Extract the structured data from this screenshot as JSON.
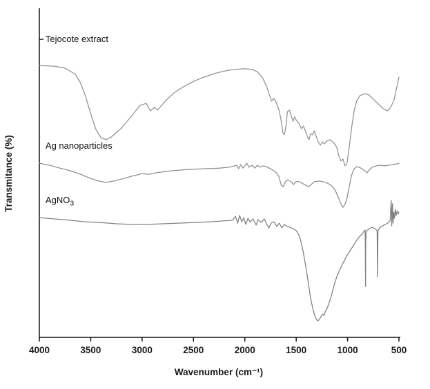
{
  "figure": {
    "background": "#ffffff",
    "axis_color": "#111111",
    "text_color": "#1a1a1a"
  },
  "chart_data": {
    "type": "line",
    "title": "",
    "xlabel": "Wavenumber (cm⁻¹)",
    "ylabel": "Transmitance (%)",
    "x_axis": {
      "min": 500,
      "max": 4000,
      "reversed": true,
      "ticks": [
        4000,
        3500,
        3000,
        2500,
        2000,
        1500,
        1000,
        500
      ]
    },
    "y_axis": {
      "min": 0,
      "max": 100,
      "tick_labels_visible": false,
      "inner_tick_T": [
        92.1
      ]
    },
    "legend": "inline-labels",
    "series": [
      {
        "name": "Tejocote extract",
        "label": "Tejocote extract",
        "label_sub": "",
        "label_wn": 3940,
        "label_T": 92.1,
        "color": "#909090",
        "points": [
          [
            4000,
            84.0
          ],
          [
            3850,
            83.8
          ],
          [
            3750,
            83.2
          ],
          [
            3650,
            81.3
          ],
          [
            3600,
            78.7
          ],
          [
            3550,
            74.5
          ],
          [
            3500,
            69.1
          ],
          [
            3450,
            64.3
          ],
          [
            3400,
            61.7
          ],
          [
            3350,
            61.1
          ],
          [
            3300,
            61.9
          ],
          [
            3200,
            64.7
          ],
          [
            3100,
            68.5
          ],
          [
            3020,
            71.7
          ],
          [
            2960,
            72.3
          ],
          [
            2920,
            70.0
          ],
          [
            2880,
            71.1
          ],
          [
            2850,
            70.2
          ],
          [
            2780,
            72.8
          ],
          [
            2700,
            75.3
          ],
          [
            2600,
            77.4
          ],
          [
            2500,
            79.1
          ],
          [
            2400,
            80.4
          ],
          [
            2300,
            81.5
          ],
          [
            2200,
            82.3
          ],
          [
            2100,
            82.8
          ],
          [
            2000,
            83.0
          ],
          [
            1930,
            82.8
          ],
          [
            1880,
            82.1
          ],
          [
            1830,
            80.4
          ],
          [
            1790,
            77.7
          ],
          [
            1760,
            74.9
          ],
          [
            1740,
            73.0
          ],
          [
            1720,
            73.8
          ],
          [
            1700,
            73.0
          ],
          [
            1670,
            70.6
          ],
          [
            1650,
            67.7
          ],
          [
            1630,
            63.2
          ],
          [
            1615,
            62.6
          ],
          [
            1600,
            65.3
          ],
          [
            1585,
            69.8
          ],
          [
            1565,
            70.2
          ],
          [
            1545,
            68.1
          ],
          [
            1530,
            66.8
          ],
          [
            1515,
            68.1
          ],
          [
            1500,
            67.2
          ],
          [
            1475,
            66.2
          ],
          [
            1450,
            64.5
          ],
          [
            1430,
            65.3
          ],
          [
            1410,
            63.8
          ],
          [
            1390,
            61.9
          ],
          [
            1375,
            61.1
          ],
          [
            1360,
            63.0
          ],
          [
            1340,
            62.6
          ],
          [
            1325,
            63.8
          ],
          [
            1305,
            62.1
          ],
          [
            1285,
            60.4
          ],
          [
            1265,
            59.4
          ],
          [
            1245,
            60.4
          ],
          [
            1225,
            59.8
          ],
          [
            1205,
            60.6
          ],
          [
            1170,
            61.1
          ],
          [
            1130,
            60.0
          ],
          [
            1105,
            58.7
          ],
          [
            1085,
            56.2
          ],
          [
            1065,
            54.5
          ],
          [
            1045,
            55.1
          ],
          [
            1025,
            53.0
          ],
          [
            1005,
            53.8
          ],
          [
            985,
            58.5
          ],
          [
            960,
            64.9
          ],
          [
            935,
            70.2
          ],
          [
            910,
            73.2
          ],
          [
            880,
            74.7
          ],
          [
            850,
            75.1
          ],
          [
            820,
            75.3
          ],
          [
            790,
            74.9
          ],
          [
            750,
            73.6
          ],
          [
            700,
            72.1
          ],
          [
            650,
            70.6
          ],
          [
            610,
            70.0
          ],
          [
            580,
            71.1
          ],
          [
            550,
            73.2
          ],
          [
            520,
            77.4
          ],
          [
            500,
            80.4
          ]
        ]
      },
      {
        "name": "Ag nanoparticles",
        "label": "Ag nanoparticles",
        "label_sub": "",
        "label_wn": 3940,
        "label_T": 59.1,
        "color": "#8c8c8c",
        "points": [
          [
            4000,
            53.8
          ],
          [
            3900,
            53.2
          ],
          [
            3800,
            52.3
          ],
          [
            3700,
            51.5
          ],
          [
            3600,
            50.4
          ],
          [
            3500,
            49.1
          ],
          [
            3420,
            48.3
          ],
          [
            3350,
            47.9
          ],
          [
            3280,
            48.3
          ],
          [
            3200,
            48.9
          ],
          [
            3100,
            49.8
          ],
          [
            3000,
            50.6
          ],
          [
            2930,
            50.4
          ],
          [
            2860,
            50.9
          ],
          [
            2700,
            51.5
          ],
          [
            2550,
            51.9
          ],
          [
            2400,
            52.1
          ],
          [
            2250,
            52.3
          ],
          [
            2150,
            52.6
          ],
          [
            2080,
            53.2
          ],
          [
            2060,
            52.1
          ],
          [
            2040,
            53.4
          ],
          [
            2020,
            52.3
          ],
          [
            2000,
            53.0
          ],
          [
            1980,
            53.8
          ],
          [
            1960,
            52.6
          ],
          [
            1930,
            53.2
          ],
          [
            1900,
            52.3
          ],
          [
            1880,
            53.2
          ],
          [
            1850,
            52.6
          ],
          [
            1820,
            53.0
          ],
          [
            1780,
            52.6
          ],
          [
            1740,
            51.9
          ],
          [
            1700,
            51.1
          ],
          [
            1670,
            49.8
          ],
          [
            1645,
            47.0
          ],
          [
            1625,
            46.6
          ],
          [
            1605,
            48.1
          ],
          [
            1580,
            48.7
          ],
          [
            1550,
            48.1
          ],
          [
            1525,
            47.2
          ],
          [
            1505,
            48.1
          ],
          [
            1470,
            48.1
          ],
          [
            1430,
            47.4
          ],
          [
            1395,
            46.8
          ],
          [
            1375,
            46.6
          ],
          [
            1350,
            47.4
          ],
          [
            1320,
            48.1
          ],
          [
            1280,
            48.3
          ],
          [
            1240,
            48.1
          ],
          [
            1200,
            47.7
          ],
          [
            1160,
            47.0
          ],
          [
            1120,
            45.5
          ],
          [
            1090,
            43.2
          ],
          [
            1065,
            41.3
          ],
          [
            1045,
            40.2
          ],
          [
            1025,
            41.1
          ],
          [
            1005,
            43.0
          ],
          [
            985,
            46.4
          ],
          [
            960,
            50.2
          ],
          [
            935,
            52.1
          ],
          [
            910,
            52.8
          ],
          [
            870,
            52.3
          ],
          [
            835,
            51.5
          ],
          [
            810,
            50.9
          ],
          [
            790,
            51.7
          ],
          [
            760,
            52.6
          ],
          [
            720,
            53.0
          ],
          [
            680,
            53.2
          ],
          [
            640,
            53.0
          ],
          [
            600,
            53.2
          ],
          [
            560,
            53.4
          ],
          [
            520,
            53.6
          ],
          [
            500,
            53.8
          ]
        ]
      },
      {
        "name": "AgNO3",
        "label": "AgNO",
        "label_sub": "3",
        "label_wn": 3940,
        "label_T": 42.3,
        "color": "#7f7f7f",
        "points": [
          [
            4000,
            37.0
          ],
          [
            3850,
            36.6
          ],
          [
            3700,
            36.2
          ],
          [
            3550,
            35.7
          ],
          [
            3400,
            35.5
          ],
          [
            3250,
            35.1
          ],
          [
            3100,
            34.9
          ],
          [
            2950,
            34.9
          ],
          [
            2800,
            35.1
          ],
          [
            2650,
            35.3
          ],
          [
            2500,
            35.5
          ],
          [
            2350,
            35.7
          ],
          [
            2200,
            36.0
          ],
          [
            2120,
            36.2
          ],
          [
            2090,
            37.4
          ],
          [
            2070,
            35.3
          ],
          [
            2050,
            37.7
          ],
          [
            2030,
            35.7
          ],
          [
            2010,
            37.0
          ],
          [
            1990,
            34.9
          ],
          [
            1970,
            36.8
          ],
          [
            1950,
            35.7
          ],
          [
            1920,
            36.6
          ],
          [
            1890,
            34.7
          ],
          [
            1870,
            36.4
          ],
          [
            1840,
            35.5
          ],
          [
            1810,
            36.6
          ],
          [
            1785,
            34.9
          ],
          [
            1765,
            33.8
          ],
          [
            1745,
            35.3
          ],
          [
            1715,
            35.7
          ],
          [
            1690,
            34.3
          ],
          [
            1665,
            35.3
          ],
          [
            1640,
            33.8
          ],
          [
            1615,
            34.9
          ],
          [
            1590,
            34.3
          ],
          [
            1560,
            34.0
          ],
          [
            1530,
            33.6
          ],
          [
            1500,
            33.0
          ],
          [
            1475,
            31.7
          ],
          [
            1455,
            29.8
          ],
          [
            1435,
            27.0
          ],
          [
            1415,
            23.4
          ],
          [
            1395,
            19.6
          ],
          [
            1380,
            16.4
          ],
          [
            1365,
            13.2
          ],
          [
            1350,
            10.6
          ],
          [
            1335,
            8.5
          ],
          [
            1320,
            6.8
          ],
          [
            1305,
            5.7
          ],
          [
            1290,
            5.1
          ],
          [
            1275,
            5.5
          ],
          [
            1260,
            6.4
          ],
          [
            1245,
            7.2
          ],
          [
            1230,
            6.8
          ],
          [
            1215,
            8.1
          ],
          [
            1200,
            8.9
          ],
          [
            1180,
            10.6
          ],
          [
            1155,
            13.2
          ],
          [
            1130,
            16.2
          ],
          [
            1105,
            18.7
          ],
          [
            1080,
            20.6
          ],
          [
            1055,
            22.3
          ],
          [
            1030,
            23.8
          ],
          [
            1005,
            25.3
          ],
          [
            975,
            26.8
          ],
          [
            945,
            28.3
          ],
          [
            915,
            29.8
          ],
          [
            885,
            31.1
          ],
          [
            860,
            31.9
          ],
          [
            840,
            32.8
          ],
          [
            830,
            33.2
          ],
          [
            827,
            29.4
          ],
          [
            825,
            15.7
          ],
          [
            823,
            29.4
          ],
          [
            820,
            32.6
          ],
          [
            805,
            33.2
          ],
          [
            785,
            33.6
          ],
          [
            765,
            34.0
          ],
          [
            745,
            33.8
          ],
          [
            725,
            33.4
          ],
          [
            712,
            32.8
          ],
          [
            708,
            18.7
          ],
          [
            704,
            32.8
          ],
          [
            695,
            33.6
          ],
          [
            670,
            34.3
          ],
          [
            645,
            34.7
          ],
          [
            620,
            35.1
          ],
          [
            600,
            35.5
          ],
          [
            585,
            36.2
          ],
          [
            575,
            42.3
          ],
          [
            570,
            34.5
          ],
          [
            563,
            41.3
          ],
          [
            557,
            35.3
          ],
          [
            550,
            38.7
          ],
          [
            543,
            36.8
          ],
          [
            535,
            39.6
          ],
          [
            527,
            37.7
          ],
          [
            518,
            39.1
          ],
          [
            509,
            38.1
          ],
          [
            500,
            38.7
          ]
        ]
      }
    ]
  }
}
